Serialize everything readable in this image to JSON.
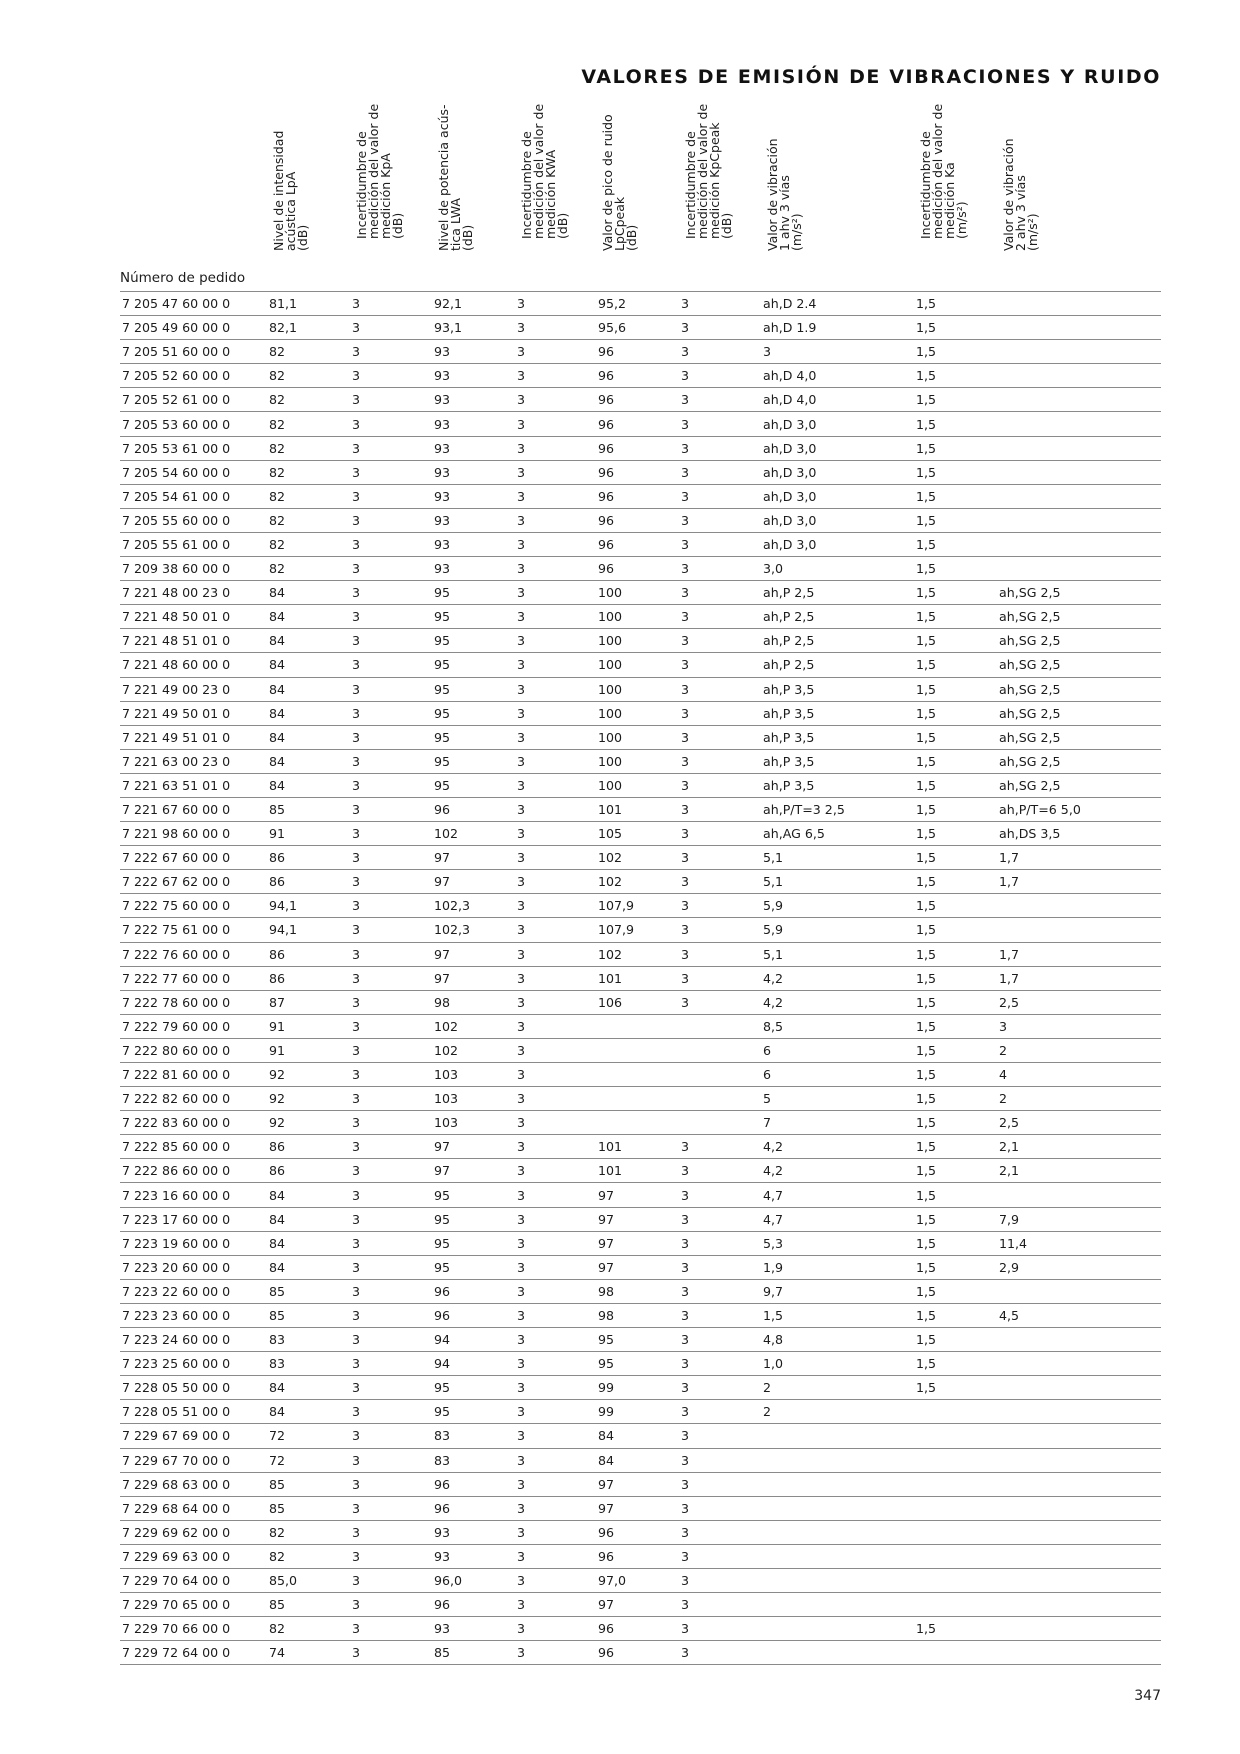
{
  "title": "VALORES DE EMISIÓN DE VIBRACIONES Y RUIDO",
  "page_number": "347",
  "table": {
    "first_header": "Número de pedido",
    "headers": [
      [
        "Nivel de intensidad",
        "acústica LpA",
        "(dB)"
      ],
      [
        "Incertidumbre de",
        "medición del valor de",
        "medición KpA",
        "(dB)"
      ],
      [
        "Nivel de potencia acús-",
        "tica LWA",
        "(dB)"
      ],
      [
        "Incertidumbre de",
        "medición del valor de",
        "medición KWA",
        "(dB)"
      ],
      [
        "Valor de pico de ruido",
        "LpCpeak",
        "(dB)"
      ],
      [
        "Incertidumbre de",
        "medición del valor de",
        "medición KpCpeak",
        "(dB)"
      ],
      [
        "Valor de vibración",
        "1 ahv 3 vías",
        "(m/s²)"
      ],
      [
        "Incertidumbre de",
        "medición del valor de",
        "medición Ka",
        "(m/s²)"
      ],
      [
        "Valor de vibración",
        "2 ahv 3 vías",
        "(m/s²)"
      ]
    ],
    "rows": [
      [
        "7 205 47 60 00 0",
        "81,1",
        "3",
        "92,1",
        "3",
        "95,2",
        "3",
        "ah,D 2.4",
        "1,5",
        ""
      ],
      [
        "7 205 49 60 00 0",
        "82,1",
        "3",
        "93,1",
        "3",
        "95,6",
        "3",
        "ah,D 1.9",
        "1,5",
        ""
      ],
      [
        "7 205 51 60 00 0",
        "82",
        "3",
        "93",
        "3",
        "96",
        "3",
        "3",
        "1,5",
        ""
      ],
      [
        "7 205 52 60 00 0",
        "82",
        "3",
        "93",
        "3",
        "96",
        "3",
        "ah,D 4,0",
        "1,5",
        ""
      ],
      [
        "7 205 52 61 00 0",
        "82",
        "3",
        "93",
        "3",
        "96",
        "3",
        "ah,D 4,0",
        "1,5",
        ""
      ],
      [
        "7 205 53 60 00 0",
        "82",
        "3",
        "93",
        "3",
        "96",
        "3",
        "ah,D 3,0",
        "1,5",
        ""
      ],
      [
        "7 205 53 61 00 0",
        "82",
        "3",
        "93",
        "3",
        "96",
        "3",
        "ah,D 3,0",
        "1,5",
        ""
      ],
      [
        "7 205 54 60 00 0",
        "82",
        "3",
        "93",
        "3",
        "96",
        "3",
        "ah,D 3,0",
        "1,5",
        ""
      ],
      [
        "7 205 54 61 00 0",
        "82",
        "3",
        "93",
        "3",
        "96",
        "3",
        "ah,D 3,0",
        "1,5",
        ""
      ],
      [
        "7 205 55 60 00 0",
        "82",
        "3",
        "93",
        "3",
        "96",
        "3",
        "ah,D 3,0",
        "1,5",
        ""
      ],
      [
        "7 205 55 61 00 0",
        "82",
        "3",
        "93",
        "3",
        "96",
        "3",
        "ah,D 3,0",
        "1,5",
        ""
      ],
      [
        "7 209 38 60 00 0",
        "82",
        "3",
        "93",
        "3",
        "96",
        "3",
        "3,0",
        "1,5",
        ""
      ],
      [
        "7 221 48 00 23 0",
        "84",
        "3",
        "95",
        "3",
        "100",
        "3",
        "ah,P 2,5",
        "1,5",
        "ah,SG 2,5"
      ],
      [
        "7 221 48 50 01 0",
        "84",
        "3",
        "95",
        "3",
        "100",
        "3",
        "ah,P 2,5",
        "1,5",
        "ah,SG 2,5"
      ],
      [
        "7 221 48 51 01 0",
        "84",
        "3",
        "95",
        "3",
        "100",
        "3",
        "ah,P 2,5",
        "1,5",
        "ah,SG 2,5"
      ],
      [
        "7 221 48 60 00 0",
        "84",
        "3",
        "95",
        "3",
        "100",
        "3",
        "ah,P 2,5",
        "1,5",
        "ah,SG 2,5"
      ],
      [
        "7 221 49 00 23 0",
        "84",
        "3",
        "95",
        "3",
        "100",
        "3",
        "ah,P 3,5",
        "1,5",
        "ah,SG 2,5"
      ],
      [
        "7 221 49 50 01 0",
        "84",
        "3",
        "95",
        "3",
        "100",
        "3",
        "ah,P 3,5",
        "1,5",
        "ah,SG 2,5"
      ],
      [
        "7 221 49 51 01 0",
        "84",
        "3",
        "95",
        "3",
        "100",
        "3",
        "ah,P 3,5",
        "1,5",
        "ah,SG 2,5"
      ],
      [
        "7 221 63 00 23 0",
        "84",
        "3",
        "95",
        "3",
        "100",
        "3",
        "ah,P 3,5",
        "1,5",
        "ah,SG 2,5"
      ],
      [
        "7 221 63 51 01 0",
        "84",
        "3",
        "95",
        "3",
        "100",
        "3",
        "ah,P 3,5",
        "1,5",
        "ah,SG 2,5"
      ],
      [
        "7 221 67 60 00 0",
        "85",
        "3",
        "96",
        "3",
        "101",
        "3",
        "ah,P/T=3 2,5",
        "1,5",
        "ah,P/T=6 5,0"
      ],
      [
        "7 221 98 60 00 0",
        "91",
        "3",
        "102",
        "3",
        "105",
        "3",
        "ah,AG 6,5",
        "1,5",
        "ah,DS 3,5"
      ],
      [
        "7 222 67 60 00 0",
        "86",
        "3",
        "97",
        "3",
        "102",
        "3",
        "5,1",
        "1,5",
        "1,7"
      ],
      [
        "7 222 67 62 00 0",
        "86",
        "3",
        "97",
        "3",
        "102",
        "3",
        "5,1",
        "1,5",
        "1,7"
      ],
      [
        "7 222 75 60 00 0",
        "94,1",
        "3",
        "102,3",
        "3",
        "107,9",
        "3",
        "5,9",
        "1,5",
        ""
      ],
      [
        "7 222 75 61 00 0",
        "94,1",
        "3",
        "102,3",
        "3",
        "107,9",
        "3",
        "5,9",
        "1,5",
        ""
      ],
      [
        "7 222 76 60 00 0",
        "86",
        "3",
        "97",
        "3",
        "102",
        "3",
        "5,1",
        "1,5",
        "1,7"
      ],
      [
        "7 222 77 60 00 0",
        "86",
        "3",
        "97",
        "3",
        "101",
        "3",
        "4,2",
        "1,5",
        "1,7"
      ],
      [
        "7 222 78 60 00 0",
        "87",
        "3",
        "98",
        "3",
        "106",
        "3",
        "4,2",
        "1,5",
        "2,5"
      ],
      [
        "7 222 79 60 00 0",
        "91",
        "3",
        "102",
        "3",
        "",
        "",
        "8,5",
        "1,5",
        "3"
      ],
      [
        "7 222 80 60 00 0",
        "91",
        "3",
        "102",
        "3",
        "",
        "",
        "6",
        "1,5",
        "2"
      ],
      [
        "7 222 81 60 00 0",
        "92",
        "3",
        "103",
        "3",
        "",
        "",
        "6",
        "1,5",
        "4"
      ],
      [
        "7 222 82 60 00 0",
        "92",
        "3",
        "103",
        "3",
        "",
        "",
        "5",
        "1,5",
        "2"
      ],
      [
        "7 222 83 60 00 0",
        "92",
        "3",
        "103",
        "3",
        "",
        "",
        "7",
        "1,5",
        "2,5"
      ],
      [
        "7 222 85 60 00 0",
        "86",
        "3",
        "97",
        "3",
        "101",
        "3",
        "4,2",
        "1,5",
        "2,1"
      ],
      [
        "7 222 86 60 00 0",
        "86",
        "3",
        "97",
        "3",
        "101",
        "3",
        "4,2",
        "1,5",
        "2,1"
      ],
      [
        "7 223 16 60 00 0",
        "84",
        "3",
        "95",
        "3",
        "97",
        "3",
        "4,7",
        "1,5",
        ""
      ],
      [
        "7 223 17 60 00 0",
        "84",
        "3",
        "95",
        "3",
        "97",
        "3",
        "4,7",
        "1,5",
        "7,9"
      ],
      [
        "7 223 19 60 00 0",
        "84",
        "3",
        "95",
        "3",
        "97",
        "3",
        "5,3",
        "1,5",
        "11,4"
      ],
      [
        "7 223 20 60 00 0",
        "84",
        "3",
        "95",
        "3",
        "97",
        "3",
        "1,9",
        "1,5",
        "2,9"
      ],
      [
        "7 223 22 60 00 0",
        "85",
        "3",
        "96",
        "3",
        "98",
        "3",
        "9,7",
        "1,5",
        ""
      ],
      [
        "7 223 23 60 00 0",
        "85",
        "3",
        "96",
        "3",
        "98",
        "3",
        "1,5",
        "1,5",
        "4,5"
      ],
      [
        "7 223 24 60 00 0",
        "83",
        "3",
        "94",
        "3",
        "95",
        "3",
        "4,8",
        "1,5",
        ""
      ],
      [
        "7 223 25 60 00 0",
        "83",
        "3",
        "94",
        "3",
        "95",
        "3",
        "1,0",
        "1,5",
        ""
      ],
      [
        "7 228 05 50 00 0",
        "84",
        "3",
        "95",
        "3",
        "99",
        "3",
        "2",
        "1,5",
        ""
      ],
      [
        "7 228 05 51 00 0",
        "84",
        "3",
        "95",
        "3",
        "99",
        "3",
        "2",
        "",
        ""
      ],
      [
        "7 229 67 69 00 0",
        "72",
        "3",
        "83",
        "3",
        "84",
        "3",
        "",
        "",
        ""
      ],
      [
        "7 229 67 70 00 0",
        "72",
        "3",
        "83",
        "3",
        "84",
        "3",
        "",
        "",
        ""
      ],
      [
        "7 229 68 63 00 0",
        "85",
        "3",
        "96",
        "3",
        "97",
        "3",
        "",
        "",
        ""
      ],
      [
        "7 229 68 64 00 0",
        "85",
        "3",
        "96",
        "3",
        "97",
        "3",
        "",
        "",
        ""
      ],
      [
        "7 229 69 62 00 0",
        "82",
        "3",
        "93",
        "3",
        "96",
        "3",
        "",
        "",
        ""
      ],
      [
        "7 229 69 63 00 0",
        "82",
        "3",
        "93",
        "3",
        "96",
        "3",
        "",
        "",
        ""
      ],
      [
        "7 229 70 64 00 0",
        "85,0",
        "3",
        "96,0",
        "3",
        "97,0",
        "3",
        "",
        "",
        ""
      ],
      [
        "7 229 70 65 00 0",
        "85",
        "3",
        "96",
        "3",
        "97",
        "3",
        "",
        "",
        ""
      ],
      [
        "7 229 70 66 00 0",
        "82",
        "3",
        "93",
        "3",
        "96",
        "3",
        "",
        "1,5",
        ""
      ],
      [
        "7 229 72 64 00 0",
        "74",
        "3",
        "85",
        "3",
        "96",
        "3",
        "",
        "",
        ""
      ]
    ]
  }
}
